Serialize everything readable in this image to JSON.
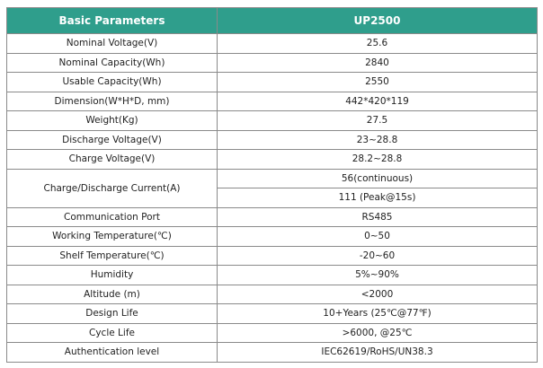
{
  "table": {
    "header": [
      "Basic Parameters",
      "UP2500"
    ],
    "rows": [
      {
        "label": "Nominal Voltage(V)",
        "values": [
          "25.6"
        ]
      },
      {
        "label": "Nominal Capacity(Wh)",
        "values": [
          "2840"
        ]
      },
      {
        "label": "Usable Capacity(Wh)",
        "values": [
          "2550"
        ]
      },
      {
        "label": "Dimension(W*H*D, mm)",
        "values": [
          "442*420*119"
        ]
      },
      {
        "label": "Weight(Kg)",
        "values": [
          "27.5"
        ]
      },
      {
        "label": "Discharge Voltage(V)",
        "values": [
          "23~28.8"
        ]
      },
      {
        "label": "Charge Voltage(V)",
        "values": [
          "28.2~28.8"
        ]
      },
      {
        "label": "Charge/Discharge Current(A)",
        "values": [
          "56(continuous)",
          "111 (Peak@15s)"
        ]
      },
      {
        "label": "Communication Port",
        "values": [
          "RS485"
        ]
      },
      {
        "label": "Working Temperature(℃)",
        "values": [
          "0~50"
        ]
      },
      {
        "label": "Shelf Temperature(℃)",
        "values": [
          "-20~60"
        ]
      },
      {
        "label": "Humidity",
        "values": [
          "5%~90%"
        ]
      },
      {
        "label": "Altitude (m)",
        "values": [
          "<2000"
        ]
      },
      {
        "label": "Design Life",
        "values": [
          "10+Years (25℃@77℉)"
        ]
      },
      {
        "label": "Cycle Life",
        "values": [
          ">6000, @25℃"
        ]
      },
      {
        "label": "Authentication level",
        "values": [
          "IEC62619/RoHS/UN38.3"
        ]
      }
    ]
  }
}
